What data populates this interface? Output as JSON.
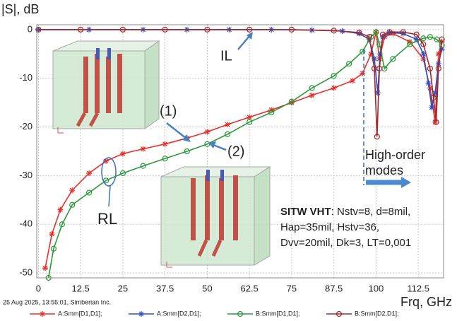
{
  "chart_data": {
    "type": "line",
    "y_label": "|S|, dB",
    "x_label": "Frq, GHz",
    "footer": "25 Aug 2025, 13:55:01, Simberian Inc.",
    "xlim": [
      -0.5,
      120
    ],
    "ylim": [
      -51,
      1
    ],
    "xticks": [
      0,
      12.5,
      25,
      37.5,
      50,
      62.5,
      75,
      87.5,
      100,
      112.5
    ],
    "yticks": [
      0,
      -10,
      -20,
      -30,
      -40,
      -50
    ],
    "grid": true,
    "annotations": {
      "il": "IL",
      "one": "(1)",
      "two": "(2)",
      "rl": "RL",
      "modes": [
        "High-order",
        "modes"
      ],
      "sitw_title": "SITW VHT",
      "sitw_lines": [
        ": Nstv=8, d=8mil,",
        "Hap=35mil, Hstv=36,",
        "Dvv=20mil, Dk=3, LT=0,001"
      ]
    },
    "series": [
      {
        "name": "A:Smm[D1,D1];",
        "color": "#e8302a",
        "marker": "star",
        "x": [
          2,
          4,
          6.5,
          10,
          15,
          20,
          25,
          31,
          37.5,
          44,
          50,
          56,
          62.5,
          69,
          75,
          81,
          87.5,
          93,
          96,
          98.5,
          100,
          101,
          102.5,
          105,
          110,
          114,
          116,
          117.5,
          118.5,
          119.5
        ],
        "values": [
          -49,
          -42,
          -37,
          -33,
          -29.5,
          -27,
          -25.5,
          -24.5,
          -23.5,
          -22.3,
          -21,
          -19.5,
          -18,
          -16.5,
          -15,
          -13.5,
          -12,
          -10.5,
          -9,
          -5,
          -0.5,
          -6,
          -1.5,
          -0.8,
          -2.5,
          -6,
          -12,
          -19,
          -5,
          -2.5
        ]
      },
      {
        "name": "A:Smm[D2,D1];",
        "color": "#2a4ec8",
        "marker": "star",
        "x": [
          0,
          15,
          31,
          44,
          56.5,
          69,
          81,
          90,
          95,
          98,
          99.5,
          100.5,
          101.2,
          102,
          104,
          108,
          112,
          114,
          115.5,
          116.5,
          117.5,
          118.5,
          119.5
        ],
        "values": [
          0,
          0,
          0,
          0,
          0,
          0,
          -0.1,
          -0.3,
          -0.8,
          -2,
          -6,
          -13,
          -5,
          -1.5,
          -0.6,
          -0.8,
          -2,
          -5,
          -11,
          -16,
          -13,
          -7,
          -4
        ]
      },
      {
        "name": "B:Smm[D1,D1];",
        "color": "#2a9a3a",
        "marker": "circle",
        "x": [
          3,
          4.5,
          7,
          10,
          15,
          20,
          25,
          31,
          37.5,
          44,
          50,
          56,
          62.5,
          69,
          75,
          81,
          87.5,
          92,
          96,
          98.5,
          100,
          101,
          102.5,
          105,
          110,
          114,
          116,
          118,
          119.5
        ],
        "values": [
          -51,
          -45,
          -40,
          -36,
          -33.5,
          -31,
          -29.5,
          -28,
          -26.5,
          -25,
          -23.5,
          -21.5,
          -19,
          -17,
          -14.8,
          -12,
          -9.5,
          -7,
          -4.5,
          -1.5,
          -0.5,
          -3,
          -8,
          -6,
          -3,
          -1.8,
          -1.5,
          -2,
          -3.2
        ]
      },
      {
        "name": "B:Smm[D2,D1];",
        "color": "#a0282a",
        "marker": "circle",
        "x": [
          0,
          12.5,
          25,
          37.5,
          50,
          62.5,
          75,
          87.5,
          95,
          98,
          99.5,
          100.3,
          101,
          102,
          104,
          108,
          112,
          114,
          116,
          117,
          117.8,
          118.5,
          119.5
        ],
        "values": [
          0,
          0,
          0,
          0,
          0,
          0,
          0,
          -0.2,
          -0.6,
          -1.5,
          -8,
          -22,
          -8,
          -1,
          -0.5,
          -0.5,
          -1,
          -3,
          -8,
          -14,
          -19,
          -8,
          -2
        ]
      }
    ]
  }
}
